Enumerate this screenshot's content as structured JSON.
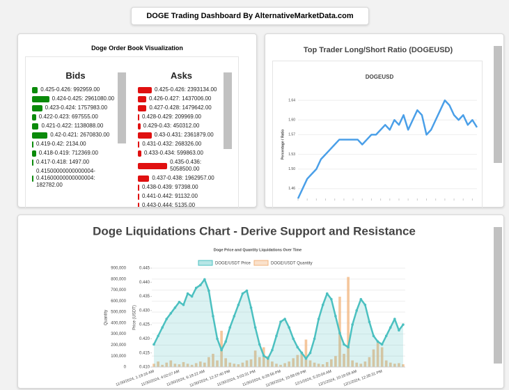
{
  "header": {
    "title": "DOGE Trading Dashboard By AlternativeMarketData.com"
  },
  "order_book": {
    "title": "Doge Order Book Visualization",
    "bids_label": "Bids",
    "asks_label": "Asks",
    "bid_color": "#0a8a0a",
    "ask_color": "#e01010",
    "bids": [
      {
        "label": "0.425-0.426: 992959.00",
        "quantity": 992959
      },
      {
        "label": "0.424-0.425: 2961080.00",
        "quantity": 2961080
      },
      {
        "label": "0.423-0.424: 1757983.00",
        "quantity": 1757983
      },
      {
        "label": "0.422-0.423: 697555.00",
        "quantity": 697555
      },
      {
        "label": "0.421-0.422: 1138088.00",
        "quantity": 1138088
      },
      {
        "label": "0.42-0.421: 2670830.00",
        "quantity": 2670830
      },
      {
        "label": "0.419-0.42: 2134.00",
        "quantity": 2134
      },
      {
        "label": "0.418-0.419: 712369.00",
        "quantity": 712369
      },
      {
        "label": "0.417-0.418: 1497.00",
        "quantity": 1497
      },
      {
        "label": "0.41500000000000004-0.41600000000000004: 182782.00",
        "quantity": 182782
      }
    ],
    "asks": [
      {
        "label": "0.425-0.426: 2393134.00",
        "quantity": 2393134
      },
      {
        "label": "0.426-0.427: 1437006.00",
        "quantity": 1437006
      },
      {
        "label": "0.427-0.428: 1479642.00",
        "quantity": 1479642
      },
      {
        "label": "0.428-0.429: 209969.00",
        "quantity": 209969
      },
      {
        "label": "0.429-0.43: 450312.00",
        "quantity": 450312
      },
      {
        "label": "0.43-0.431: 2361879.00",
        "quantity": 2361879
      },
      {
        "label": "0.431-0.432: 268326.00",
        "quantity": 268326
      },
      {
        "label": "0.433-0.434: 599863.00",
        "quantity": 599863
      },
      {
        "label": "0.435-0.436: 5058500.00",
        "quantity": 5058500
      },
      {
        "label": "0.437-0.438: 1962957.00",
        "quantity": 1962957
      },
      {
        "label": "0.438-0.439: 97398.00",
        "quantity": 97398
      },
      {
        "label": "0.441-0.442: 91132.00",
        "quantity": 91132
      },
      {
        "label": "0.443-0.444: 5135.00",
        "quantity": 5135
      }
    ]
  },
  "chart_data": [
    {
      "type": "line",
      "panel_title": "Top Trader Long/Short Ratio (DOGEUSD)",
      "title": "DOGEUSD",
      "y_label": "Percentage / Ratio",
      "color": "#4a9fe8",
      "grid": true,
      "ylim": [
        1.44,
        1.66
      ],
      "yticks": [
        1.46,
        {
          "value": 1.5,
          "label": "1.50"
        },
        1.53,
        1.57,
        {
          "value": 1.6,
          "label": "1.60"
        },
        1.64
      ],
      "values": [
        1.44,
        1.46,
        1.48,
        1.49,
        1.5,
        1.52,
        1.53,
        1.54,
        1.55,
        1.56,
        1.56,
        1.56,
        1.56,
        1.56,
        1.55,
        1.56,
        1.57,
        1.57,
        1.58,
        1.59,
        1.58,
        1.6,
        1.59,
        1.61,
        1.58,
        1.6,
        1.62,
        1.61,
        1.57,
        1.58,
        1.6,
        1.62,
        1.64,
        1.63,
        1.61,
        1.6,
        1.61,
        1.59,
        1.6,
        1.585
      ]
    },
    {
      "type": "combo",
      "panel_title": "Doge Liquidations Chart - Derive Support and Resistance",
      "title": "Doge Price and Quantity Liquidations Over Time",
      "y_label": "Quantity",
      "y2_label": "Price (USDT)",
      "grid": true,
      "ylim": [
        0,
        900000
      ],
      "yticks": [
        0,
        {
          "value": 100000,
          "label": "100,000"
        },
        {
          "value": 200000,
          "label": "200,000"
        },
        {
          "value": 300000,
          "label": "300,000"
        },
        {
          "value": 400000,
          "label": "400,000"
        },
        {
          "value": 500000,
          "label": "500,000"
        },
        {
          "value": 600000,
          "label": "600,000"
        },
        {
          "value": 700000,
          "label": "700,000"
        },
        {
          "value": 800000,
          "label": "800,000"
        },
        {
          "value": 900000,
          "label": "900,000"
        }
      ],
      "y2lim": [
        0.41,
        0.445
      ],
      "y2ticks": [
        {
          "value": 0.41,
          "label": "0.410"
        },
        0.415,
        {
          "value": 0.42,
          "label": "0.420"
        },
        0.425,
        {
          "value": 0.43,
          "label": "0.430"
        },
        0.435,
        {
          "value": 0.44,
          "label": "0.440"
        },
        0.445
      ],
      "categories": [
        "11/30/2024, 1:19:16 AM",
        null,
        null,
        null,
        null,
        null,
        "11/30/2024, 4:02:07 AM",
        null,
        null,
        null,
        null,
        null,
        "11/30/2024, 6:18:22 AM",
        null,
        null,
        null,
        null,
        null,
        "11/30/2024, 12:37:40 PM",
        null,
        null,
        null,
        null,
        null,
        "11/30/2024, 3:03:31 PM",
        null,
        null,
        null,
        null,
        null,
        "11/30/2024, 6:28:56 PM",
        null,
        null,
        null,
        null,
        null,
        "11/30/2024, 10:58:09 PM",
        null,
        null,
        null,
        null,
        null,
        "12/1/2024, 5:20:04 AM",
        null,
        null,
        null,
        null,
        null,
        "12/1/2024, 10:16:59 AM",
        null,
        null,
        null,
        null,
        null,
        "12/1/2024, 12:35:31 PM",
        null,
        null,
        null,
        null,
        null
      ],
      "series": [
        {
          "name": "DOGE/USDT Price",
          "color": "#4bc0c0",
          "type": "line",
          "axis": "y2",
          "values": [
            0.418,
            0.421,
            0.424,
            0.427,
            0.429,
            0.431,
            0.433,
            0.432,
            0.436,
            0.435,
            0.438,
            0.439,
            0.441,
            0.437,
            0.428,
            0.42,
            0.416,
            0.419,
            0.424,
            0.428,
            0.432,
            0.436,
            0.437,
            0.431,
            0.424,
            0.418,
            0.414,
            0.413,
            0.416,
            0.421,
            0.426,
            0.427,
            0.424,
            0.42,
            0.417,
            0.415,
            0.413,
            0.415,
            0.42,
            0.427,
            0.432,
            0.436,
            0.434,
            0.428,
            0.422,
            0.418,
            0.417,
            0.425,
            0.43,
            0.434,
            0.432,
            0.426,
            0.421,
            0.419,
            0.418,
            0.421,
            0.424,
            0.427,
            0.423,
            0.425
          ]
        },
        {
          "name": "DOGE/USDT Quantity",
          "color": "#f2b47c",
          "type": "bar",
          "values": [
            30000,
            50000,
            20000,
            40000,
            60000,
            30000,
            25000,
            45000,
            30000,
            20000,
            35000,
            50000,
            40000,
            90000,
            120000,
            60000,
            330000,
            80000,
            40000,
            30000,
            25000,
            40000,
            60000,
            70000,
            150000,
            90000,
            180000,
            100000,
            50000,
            30000,
            20000,
            35000,
            50000,
            80000,
            110000,
            140000,
            250000,
            60000,
            40000,
            30000,
            25000,
            45000,
            70000,
            100000,
            640000,
            120000,
            820000,
            60000,
            40000,
            30000,
            50000,
            90000,
            160000,
            220000,
            180000,
            60000,
            40000,
            30000,
            35000,
            25000
          ]
        }
      ]
    }
  ]
}
